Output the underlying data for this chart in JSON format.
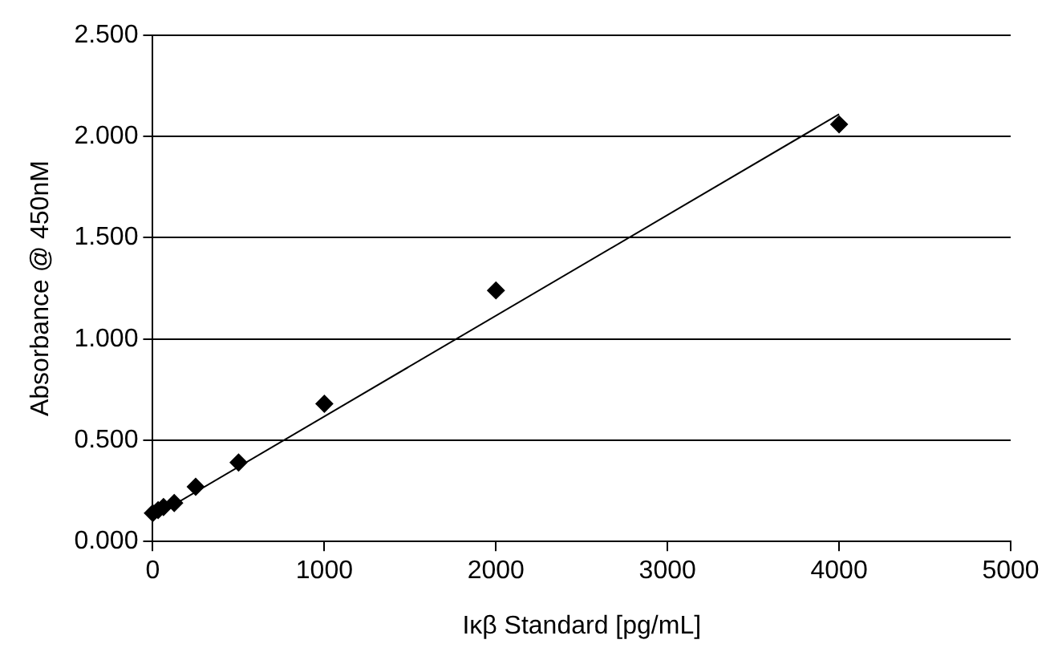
{
  "chart_data": {
    "type": "scatter",
    "xlabel": "Iκβ Standard [pg/mL]",
    "ylabel": "Absorbance @ 450nM",
    "series": [
      {
        "type": "scatter",
        "color": "#000000",
        "marker": "diamond",
        "x": [
          0,
          31.25,
          62.5,
          125,
          250,
          500,
          1000,
          2000,
          4000
        ],
        "values": [
          0.14,
          0.155,
          0.17,
          0.19,
          0.27,
          0.39,
          0.68,
          1.24,
          2.06
        ]
      },
      {
        "type": "line",
        "color": "#000000",
        "marker": "none",
        "line_style": "solid",
        "x": [
          0,
          4000
        ],
        "values": [
          0.12,
          2.11
        ]
      }
    ],
    "xlim": [
      0,
      5000
    ],
    "xticks": [
      0,
      1000,
      2000,
      3000,
      4000,
      5000
    ],
    "ylim": [
      0,
      2.5
    ],
    "yticks": [
      {
        "value": 0,
        "label": "0.000"
      },
      {
        "value": 0.5,
        "label": "0.500"
      },
      {
        "value": 1,
        "label": "1.000"
      },
      {
        "value": 1.5,
        "label": "1.500"
      },
      {
        "value": 2,
        "label": "2.000"
      },
      {
        "value": 2.5,
        "label": "2.500"
      }
    ],
    "grid": "y",
    "legend": false
  }
}
